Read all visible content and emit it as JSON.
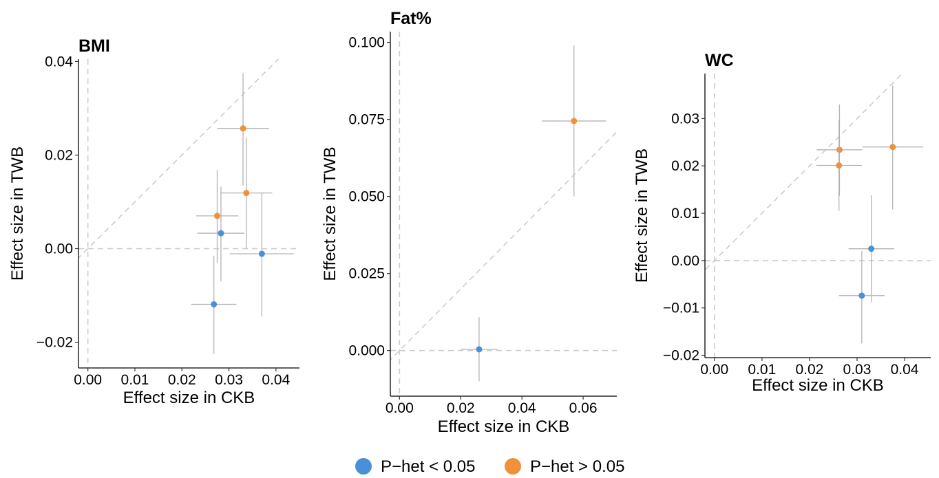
{
  "chart_data": [
    {
      "type": "scatter",
      "title": "BMI",
      "xlabel": "Effect size in CKB",
      "ylabel": "Effect size in TWB",
      "xlim": [
        -0.002,
        0.045
      ],
      "ylim": [
        -0.0255,
        0.0405
      ],
      "xticks": [
        0.0,
        0.01,
        0.02,
        0.03,
        0.04
      ],
      "xtick_labels": [
        "0.00",
        "0.01",
        "0.02",
        "0.03",
        "0.04"
      ],
      "yticks": [
        -0.02,
        0.0,
        0.02,
        0.04
      ],
      "ytick_labels": [
        "−0.02",
        "0.00",
        "0.02",
        "0.04"
      ],
      "grid": false,
      "reference_lines": [
        "x=0",
        "y=0",
        "y=x"
      ],
      "points": [
        {
          "x": 0.033,
          "y": 0.0257,
          "xlo": 0.0275,
          "xhi": 0.0385,
          "ylo": 0.0135,
          "yhi": 0.0375,
          "group": "P−het > 0.05"
        },
        {
          "x": 0.0337,
          "y": 0.0119,
          "xlo": 0.0282,
          "xhi": 0.0392,
          "ylo": 0.0,
          "yhi": 0.0238,
          "group": "P−het > 0.05"
        },
        {
          "x": 0.0275,
          "y": 0.007,
          "xlo": 0.023,
          "xhi": 0.032,
          "ylo": -0.003,
          "yhi": 0.0168,
          "group": "P−het > 0.05"
        },
        {
          "x": 0.0283,
          "y": 0.0033,
          "xlo": 0.0233,
          "xhi": 0.0333,
          "ylo": -0.007,
          "yhi": 0.0132,
          "group": "P−het < 0.05"
        },
        {
          "x": 0.037,
          "y": -0.0011,
          "xlo": 0.0302,
          "xhi": 0.0438,
          "ylo": -0.0145,
          "yhi": 0.012,
          "group": "P−het < 0.05"
        },
        {
          "x": 0.0268,
          "y": -0.0119,
          "xlo": 0.022,
          "xhi": 0.0316,
          "ylo": -0.0225,
          "yhi": -0.0015,
          "group": "P−het < 0.05"
        }
      ]
    },
    {
      "type": "scatter",
      "title": "Fat%",
      "xlabel": "Effect size in CKB",
      "ylabel": "Effect size in TWB",
      "xlim": [
        -0.003,
        0.071
      ],
      "ylim": [
        -0.0148,
        0.1035
      ],
      "xticks": [
        0.0,
        0.02,
        0.04,
        0.06
      ],
      "xtick_labels": [
        "0.00",
        "0.02",
        "0.04",
        "0.06"
      ],
      "yticks": [
        0.0,
        0.025,
        0.05,
        0.075,
        0.1
      ],
      "ytick_labels": [
        "0.000",
        "0.025",
        "0.050",
        "0.075",
        "0.100"
      ],
      "grid": false,
      "reference_lines": [
        "x=0",
        "y=0",
        "y=x"
      ],
      "points": [
        {
          "x": 0.057,
          "y": 0.0745,
          "xlo": 0.0465,
          "xhi": 0.0675,
          "ylo": 0.05,
          "yhi": 0.099,
          "group": "P−het > 0.05"
        },
        {
          "x": 0.026,
          "y": 0.0004,
          "xlo": 0.02,
          "xhi": 0.032,
          "ylo": -0.01,
          "yhi": 0.0108,
          "group": "P−het < 0.05"
        }
      ]
    },
    {
      "type": "scatter",
      "title": "WC",
      "xlabel": "Effect size in CKB",
      "ylabel": "Effect size in TWB",
      "xlim": [
        -0.002,
        0.0455
      ],
      "ylim": [
        -0.0205,
        0.0395
      ],
      "xticks": [
        0.0,
        0.01,
        0.02,
        0.03,
        0.04
      ],
      "xtick_labels": [
        "0.00",
        "0.01",
        "0.02",
        "0.03",
        "0.04"
      ],
      "yticks": [
        -0.02,
        -0.01,
        0.0,
        0.01,
        0.02,
        0.03
      ],
      "ytick_labels": [
        "−0.02",
        "−0.01",
        "0.00",
        "0.01",
        "0.02",
        "0.03"
      ],
      "grid": false,
      "reference_lines": [
        "x=0",
        "y=0",
        "y=x"
      ],
      "points": [
        {
          "x": 0.0263,
          "y": 0.0234,
          "xlo": 0.0215,
          "xhi": 0.0311,
          "ylo": 0.0137,
          "yhi": 0.033,
          "group": "P−het > 0.05"
        },
        {
          "x": 0.0262,
          "y": 0.0201,
          "xlo": 0.0214,
          "xhi": 0.031,
          "ylo": 0.0105,
          "yhi": 0.0297,
          "group": "P−het > 0.05"
        },
        {
          "x": 0.0375,
          "y": 0.024,
          "xlo": 0.0311,
          "xhi": 0.0439,
          "ylo": 0.0108,
          "yhi": 0.037,
          "group": "P−het > 0.05"
        },
        {
          "x": 0.033,
          "y": 0.0025,
          "xlo": 0.0282,
          "xhi": 0.0378,
          "ylo": -0.0088,
          "yhi": 0.0138,
          "group": "P−het < 0.05"
        },
        {
          "x": 0.031,
          "y": -0.0074,
          "xlo": 0.0262,
          "xhi": 0.0358,
          "ylo": -0.0175,
          "yhi": 0.002,
          "group": "P−het < 0.05"
        }
      ]
    }
  ],
  "legend": {
    "position": "bottom",
    "items": [
      {
        "label": "P−het < 0.05",
        "color": "#4a90d9"
      },
      {
        "label": "P−het > 0.05",
        "color": "#f0903a"
      }
    ]
  },
  "colors": {
    "sig": "#4a90d9",
    "nonsig": "#f0903a",
    "errorbar": "#b3b3b3",
    "refline": "#cccccc"
  }
}
